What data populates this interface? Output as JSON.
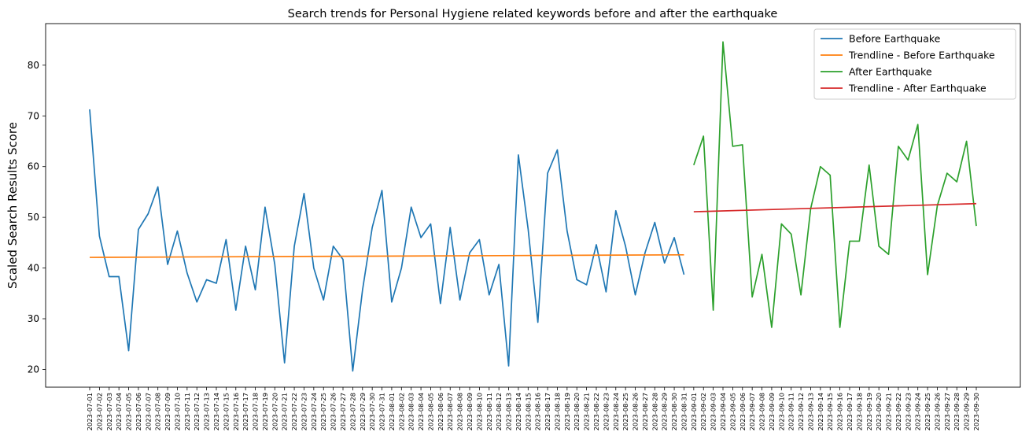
{
  "chart_data": {
    "type": "line",
    "title": "Search trends for Personal Hygiene related keywords before and after the earthquake",
    "ylabel": "Scaled Search Results Score",
    "xlabel": "",
    "ylim": [
      16.5,
      88.2
    ],
    "yticks": [
      20,
      30,
      40,
      50,
      60,
      70,
      80
    ],
    "grid": false,
    "legend_position": "top-right",
    "x": [
      "2023-07-01",
      "2023-07-02",
      "2023-07-03",
      "2023-07-04",
      "2023-07-05",
      "2023-07-06",
      "2023-07-07",
      "2023-07-08",
      "2023-07-09",
      "2023-07-10",
      "2023-07-11",
      "2023-07-12",
      "2023-07-13",
      "2023-07-14",
      "2023-07-15",
      "2023-07-16",
      "2023-07-17",
      "2023-07-18",
      "2023-07-19",
      "2023-07-20",
      "2023-07-21",
      "2023-07-22",
      "2023-07-23",
      "2023-07-24",
      "2023-07-25",
      "2023-07-26",
      "2023-07-27",
      "2023-07-28",
      "2023-07-29",
      "2023-07-30",
      "2023-07-31",
      "2023-08-01",
      "2023-08-02",
      "2023-08-03",
      "2023-08-04",
      "2023-08-05",
      "2023-08-06",
      "2023-08-07",
      "2023-08-08",
      "2023-08-09",
      "2023-08-10",
      "2023-08-11",
      "2023-08-12",
      "2023-08-13",
      "2023-08-14",
      "2023-08-15",
      "2023-08-16",
      "2023-08-17",
      "2023-08-18",
      "2023-08-19",
      "2023-08-20",
      "2023-08-21",
      "2023-08-22",
      "2023-08-23",
      "2023-08-24",
      "2023-08-25",
      "2023-08-26",
      "2023-08-27",
      "2023-08-28",
      "2023-08-29",
      "2023-08-30",
      "2023-08-31",
      "2023-09-01",
      "2023-09-02",
      "2023-09-03",
      "2023-09-04",
      "2023-09-05",
      "2023-09-06",
      "2023-09-07",
      "2023-09-08",
      "2023-09-09",
      "2023-09-10",
      "2023-09-11",
      "2023-09-12",
      "2023-09-13",
      "2023-09-14",
      "2023-09-15",
      "2023-09-16",
      "2023-09-17",
      "2023-09-18",
      "2023-09-19",
      "2023-09-20",
      "2023-09-21",
      "2023-09-22",
      "2023-09-23",
      "2023-09-24",
      "2023-09-25",
      "2023-09-26",
      "2023-09-27",
      "2023-09-28",
      "2023-09-29",
      "2023-09-30"
    ],
    "series": [
      {
        "name": "Before Earthquake",
        "color": "#1f77b4",
        "x": [
          "2023-07-01",
          "2023-07-02",
          "2023-07-03",
          "2023-07-04",
          "2023-07-05",
          "2023-07-06",
          "2023-07-07",
          "2023-07-08",
          "2023-07-09",
          "2023-07-10",
          "2023-07-11",
          "2023-07-12",
          "2023-07-13",
          "2023-07-14",
          "2023-07-15",
          "2023-07-16",
          "2023-07-17",
          "2023-07-18",
          "2023-07-19",
          "2023-07-20",
          "2023-07-21",
          "2023-07-22",
          "2023-07-23",
          "2023-07-24",
          "2023-07-25",
          "2023-07-26",
          "2023-07-27",
          "2023-07-28",
          "2023-07-29",
          "2023-07-30",
          "2023-07-31",
          "2023-08-01",
          "2023-08-02",
          "2023-08-03",
          "2023-08-04",
          "2023-08-05",
          "2023-08-06",
          "2023-08-07",
          "2023-08-08",
          "2023-08-09",
          "2023-08-10",
          "2023-08-11",
          "2023-08-12",
          "2023-08-13",
          "2023-08-14",
          "2023-08-15",
          "2023-08-16",
          "2023-08-17",
          "2023-08-18",
          "2023-08-19",
          "2023-08-20",
          "2023-08-21",
          "2023-08-22",
          "2023-08-23",
          "2023-08-24",
          "2023-08-25",
          "2023-08-26",
          "2023-08-27",
          "2023-08-28",
          "2023-08-29",
          "2023-08-30",
          "2023-08-31"
        ],
        "values": [
          71.3,
          46.3,
          38.3,
          38.3,
          23.7,
          47.6,
          50.7,
          56.0,
          40.7,
          47.3,
          39.0,
          33.3,
          37.7,
          37.0,
          45.6,
          31.7,
          44.3,
          35.7,
          52.0,
          40.7,
          21.3,
          44.3,
          54.7,
          40.0,
          33.7,
          44.3,
          41.7,
          19.7,
          35.6,
          48.0,
          55.3,
          33.3,
          40.0,
          52.0,
          46.0,
          48.7,
          33.0,
          48.0,
          33.7,
          43.0,
          45.6,
          34.7,
          40.7,
          20.7,
          62.3,
          47.7,
          29.3,
          58.7,
          63.3,
          47.3,
          37.7,
          36.7,
          44.6,
          35.3,
          51.3,
          44.3,
          34.7,
          43.0,
          49.0,
          41.0,
          46.0,
          38.7
        ]
      },
      {
        "name": "Trendline - Before Earthquake",
        "color": "#ff7f0e",
        "x": [
          "2023-07-01",
          "2023-08-31"
        ],
        "values": [
          42.1,
          42.6
        ]
      },
      {
        "name": "After Earthquake",
        "color": "#2ca02c",
        "x": [
          "2023-09-01",
          "2023-09-02",
          "2023-09-03",
          "2023-09-04",
          "2023-09-05",
          "2023-09-06",
          "2023-09-07",
          "2023-09-08",
          "2023-09-09",
          "2023-09-10",
          "2023-09-11",
          "2023-09-12",
          "2023-09-13",
          "2023-09-14",
          "2023-09-15",
          "2023-09-16",
          "2023-09-17",
          "2023-09-18",
          "2023-09-19",
          "2023-09-20",
          "2023-09-21",
          "2023-09-22",
          "2023-09-23",
          "2023-09-24",
          "2023-09-25",
          "2023-09-26",
          "2023-09-27",
          "2023-09-28",
          "2023-09-29",
          "2023-09-30"
        ],
        "values": [
          60.3,
          66.0,
          31.7,
          84.6,
          64.0,
          64.3,
          34.3,
          42.7,
          28.3,
          48.7,
          46.7,
          34.7,
          51.7,
          60.0,
          58.3,
          28.3,
          45.3,
          45.3,
          60.3,
          44.3,
          42.7,
          64.0,
          61.3,
          68.3,
          38.7,
          52.3,
          58.7,
          57.0,
          65.0,
          48.3
        ]
      },
      {
        "name": "Trendline - After Earthquake",
        "color": "#d62728",
        "x": [
          "2023-09-01",
          "2023-09-30"
        ],
        "values": [
          51.1,
          52.7
        ]
      }
    ]
  }
}
